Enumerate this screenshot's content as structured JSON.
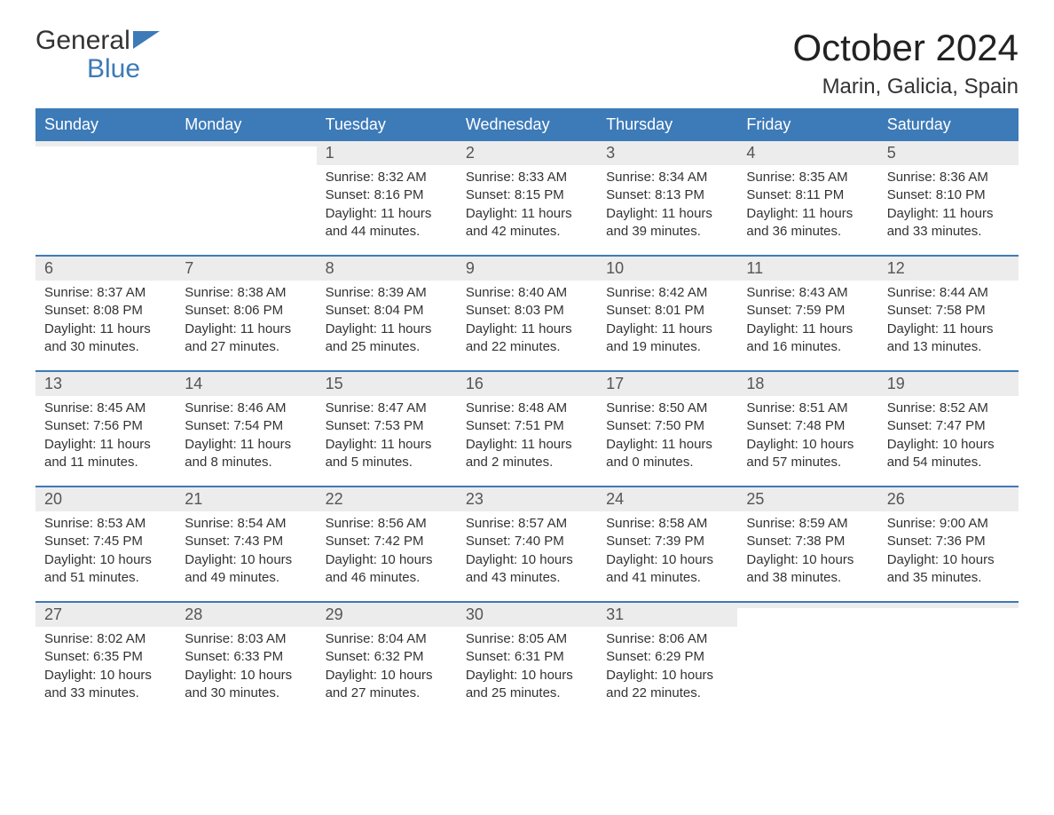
{
  "brand": {
    "general": "General",
    "blue": "Blue"
  },
  "header": {
    "month_title": "October 2024",
    "location": "Marin, Galicia, Spain"
  },
  "colors": {
    "header_bg": "#3d7ab8",
    "header_text": "#ffffff",
    "daynum_bg": "#ececec",
    "week_divider": "#3d7ab8",
    "body_text": "#333333",
    "logo_blue": "#3d7ab8"
  },
  "typography": {
    "month_title_fontsize": 42,
    "location_fontsize": 24,
    "weekday_fontsize": 18,
    "daynum_fontsize": 18,
    "content_fontsize": 15
  },
  "layout": {
    "columns": 7,
    "rows": 5
  },
  "weekdays": [
    "Sunday",
    "Monday",
    "Tuesday",
    "Wednesday",
    "Thursday",
    "Friday",
    "Saturday"
  ],
  "weeks": [
    [
      {
        "day": "",
        "sunrise": "",
        "sunset": "",
        "daylight": ""
      },
      {
        "day": "",
        "sunrise": "",
        "sunset": "",
        "daylight": ""
      },
      {
        "day": "1",
        "sunrise": "Sunrise: 8:32 AM",
        "sunset": "Sunset: 8:16 PM",
        "daylight": "Daylight: 11 hours and 44 minutes."
      },
      {
        "day": "2",
        "sunrise": "Sunrise: 8:33 AM",
        "sunset": "Sunset: 8:15 PM",
        "daylight": "Daylight: 11 hours and 42 minutes."
      },
      {
        "day": "3",
        "sunrise": "Sunrise: 8:34 AM",
        "sunset": "Sunset: 8:13 PM",
        "daylight": "Daylight: 11 hours and 39 minutes."
      },
      {
        "day": "4",
        "sunrise": "Sunrise: 8:35 AM",
        "sunset": "Sunset: 8:11 PM",
        "daylight": "Daylight: 11 hours and 36 minutes."
      },
      {
        "day": "5",
        "sunrise": "Sunrise: 8:36 AM",
        "sunset": "Sunset: 8:10 PM",
        "daylight": "Daylight: 11 hours and 33 minutes."
      }
    ],
    [
      {
        "day": "6",
        "sunrise": "Sunrise: 8:37 AM",
        "sunset": "Sunset: 8:08 PM",
        "daylight": "Daylight: 11 hours and 30 minutes."
      },
      {
        "day": "7",
        "sunrise": "Sunrise: 8:38 AM",
        "sunset": "Sunset: 8:06 PM",
        "daylight": "Daylight: 11 hours and 27 minutes."
      },
      {
        "day": "8",
        "sunrise": "Sunrise: 8:39 AM",
        "sunset": "Sunset: 8:04 PM",
        "daylight": "Daylight: 11 hours and 25 minutes."
      },
      {
        "day": "9",
        "sunrise": "Sunrise: 8:40 AM",
        "sunset": "Sunset: 8:03 PM",
        "daylight": "Daylight: 11 hours and 22 minutes."
      },
      {
        "day": "10",
        "sunrise": "Sunrise: 8:42 AM",
        "sunset": "Sunset: 8:01 PM",
        "daylight": "Daylight: 11 hours and 19 minutes."
      },
      {
        "day": "11",
        "sunrise": "Sunrise: 8:43 AM",
        "sunset": "Sunset: 7:59 PM",
        "daylight": "Daylight: 11 hours and 16 minutes."
      },
      {
        "day": "12",
        "sunrise": "Sunrise: 8:44 AM",
        "sunset": "Sunset: 7:58 PM",
        "daylight": "Daylight: 11 hours and 13 minutes."
      }
    ],
    [
      {
        "day": "13",
        "sunrise": "Sunrise: 8:45 AM",
        "sunset": "Sunset: 7:56 PM",
        "daylight": "Daylight: 11 hours and 11 minutes."
      },
      {
        "day": "14",
        "sunrise": "Sunrise: 8:46 AM",
        "sunset": "Sunset: 7:54 PM",
        "daylight": "Daylight: 11 hours and 8 minutes."
      },
      {
        "day": "15",
        "sunrise": "Sunrise: 8:47 AM",
        "sunset": "Sunset: 7:53 PM",
        "daylight": "Daylight: 11 hours and 5 minutes."
      },
      {
        "day": "16",
        "sunrise": "Sunrise: 8:48 AM",
        "sunset": "Sunset: 7:51 PM",
        "daylight": "Daylight: 11 hours and 2 minutes."
      },
      {
        "day": "17",
        "sunrise": "Sunrise: 8:50 AM",
        "sunset": "Sunset: 7:50 PM",
        "daylight": "Daylight: 11 hours and 0 minutes."
      },
      {
        "day": "18",
        "sunrise": "Sunrise: 8:51 AM",
        "sunset": "Sunset: 7:48 PM",
        "daylight": "Daylight: 10 hours and 57 minutes."
      },
      {
        "day": "19",
        "sunrise": "Sunrise: 8:52 AM",
        "sunset": "Sunset: 7:47 PM",
        "daylight": "Daylight: 10 hours and 54 minutes."
      }
    ],
    [
      {
        "day": "20",
        "sunrise": "Sunrise: 8:53 AM",
        "sunset": "Sunset: 7:45 PM",
        "daylight": "Daylight: 10 hours and 51 minutes."
      },
      {
        "day": "21",
        "sunrise": "Sunrise: 8:54 AM",
        "sunset": "Sunset: 7:43 PM",
        "daylight": "Daylight: 10 hours and 49 minutes."
      },
      {
        "day": "22",
        "sunrise": "Sunrise: 8:56 AM",
        "sunset": "Sunset: 7:42 PM",
        "daylight": "Daylight: 10 hours and 46 minutes."
      },
      {
        "day": "23",
        "sunrise": "Sunrise: 8:57 AM",
        "sunset": "Sunset: 7:40 PM",
        "daylight": "Daylight: 10 hours and 43 minutes."
      },
      {
        "day": "24",
        "sunrise": "Sunrise: 8:58 AM",
        "sunset": "Sunset: 7:39 PM",
        "daylight": "Daylight: 10 hours and 41 minutes."
      },
      {
        "day": "25",
        "sunrise": "Sunrise: 8:59 AM",
        "sunset": "Sunset: 7:38 PM",
        "daylight": "Daylight: 10 hours and 38 minutes."
      },
      {
        "day": "26",
        "sunrise": "Sunrise: 9:00 AM",
        "sunset": "Sunset: 7:36 PM",
        "daylight": "Daylight: 10 hours and 35 minutes."
      }
    ],
    [
      {
        "day": "27",
        "sunrise": "Sunrise: 8:02 AM",
        "sunset": "Sunset: 6:35 PM",
        "daylight": "Daylight: 10 hours and 33 minutes."
      },
      {
        "day": "28",
        "sunrise": "Sunrise: 8:03 AM",
        "sunset": "Sunset: 6:33 PM",
        "daylight": "Daylight: 10 hours and 30 minutes."
      },
      {
        "day": "29",
        "sunrise": "Sunrise: 8:04 AM",
        "sunset": "Sunset: 6:32 PM",
        "daylight": "Daylight: 10 hours and 27 minutes."
      },
      {
        "day": "30",
        "sunrise": "Sunrise: 8:05 AM",
        "sunset": "Sunset: 6:31 PM",
        "daylight": "Daylight: 10 hours and 25 minutes."
      },
      {
        "day": "31",
        "sunrise": "Sunrise: 8:06 AM",
        "sunset": "Sunset: 6:29 PM",
        "daylight": "Daylight: 10 hours and 22 minutes."
      },
      {
        "day": "",
        "sunrise": "",
        "sunset": "",
        "daylight": ""
      },
      {
        "day": "",
        "sunrise": "",
        "sunset": "",
        "daylight": ""
      }
    ]
  ]
}
